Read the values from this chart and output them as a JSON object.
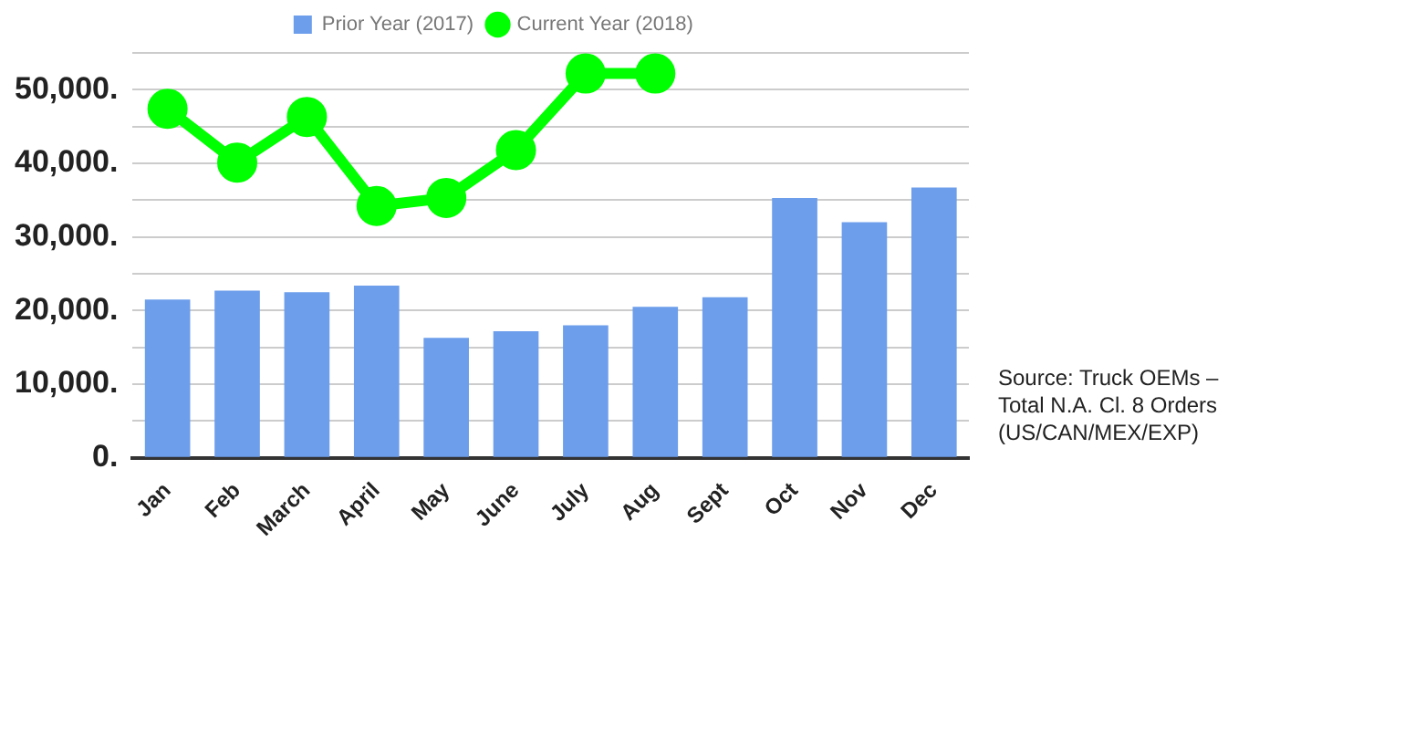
{
  "chart_data": {
    "type": "bar",
    "categories": [
      "Jan",
      "Feb",
      "March",
      "April",
      "May",
      "June",
      "July",
      "Aug",
      "Sept",
      "Oct",
      "Nov",
      "Dec"
    ],
    "series": [
      {
        "name": "Prior Year (2017)",
        "color": "#6d9eeb",
        "values": [
          21500,
          22700,
          22500,
          23400,
          16300,
          17200,
          18000,
          20500,
          21800,
          35300,
          32000,
          36700
        ]
      },
      {
        "name": "Current Year (2018)",
        "type": "line",
        "color": "#00ff00",
        "values": [
          47400,
          40100,
          46300,
          34200,
          35300,
          41800,
          52200,
          52200,
          null,
          null,
          null,
          null
        ]
      }
    ],
    "ylim": [
      0,
      55000
    ],
    "yticks": [
      {
        "value": 0,
        "label": "0."
      },
      {
        "value": 5000,
        "label": null
      },
      {
        "value": 10000,
        "label": "10,000."
      },
      {
        "value": 15000,
        "label": null
      },
      {
        "value": 20000,
        "label": "20,000."
      },
      {
        "value": 25000,
        "label": null
      },
      {
        "value": 30000,
        "label": "30,000."
      },
      {
        "value": 35000,
        "label": null
      },
      {
        "value": 40000,
        "label": "40,000."
      },
      {
        "value": 45000,
        "label": null
      },
      {
        "value": 50000,
        "label": "50,000."
      },
      {
        "value": 55000,
        "label": null
      }
    ],
    "grid": "y",
    "legend": "top",
    "marker": "circle",
    "annotations": [
      "Source: Truck OEMs –\nTotal N.A. Cl. 8 Orders\n(US/CAN/MEX/EXP)"
    ]
  }
}
